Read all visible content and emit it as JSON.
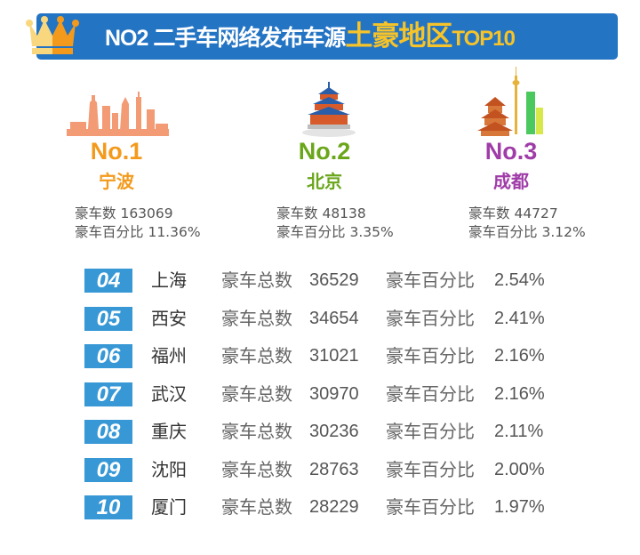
{
  "header": {
    "title_prefix": "NO2 二手车网络发布车源",
    "title_highlight": "土豪地区",
    "title_suffix": "TOP10",
    "bg_color": "#2474c4",
    "highlight_color": "#f6c329",
    "icon": "crown-icon"
  },
  "top3": [
    {
      "rank": "No.1",
      "city": "宁波",
      "count_label": "豪车数",
      "count": "163069",
      "pct_label": "豪车百分比",
      "pct": "11.36%",
      "color": "#f39a1c",
      "icon": "ningbo-skyline-icon"
    },
    {
      "rank": "No.2",
      "city": "北京",
      "count_label": "豪车数",
      "count": "48138",
      "pct_label": "豪车百分比",
      "pct": "3.35%",
      "color": "#6aa61a",
      "icon": "temple-of-heaven-icon"
    },
    {
      "rank": "No.3",
      "city": "成都",
      "count_label": "豪车数",
      "count": "44727",
      "pct_label": "豪车百分比",
      "pct": "3.12%",
      "color": "#a03ca8",
      "icon": "chengdu-skyline-icon"
    }
  ],
  "list_labels": {
    "count_label": "豪车总数",
    "pct_label": "豪车百分比"
  },
  "list": [
    {
      "rank": "04",
      "city": "上海",
      "count": "36529",
      "pct": "2.54%"
    },
    {
      "rank": "05",
      "city": "西安",
      "count": "34654",
      "pct": "2.41%"
    },
    {
      "rank": "06",
      "city": "福州",
      "count": "31021",
      "pct": "2.16%"
    },
    {
      "rank": "07",
      "city": "武汉",
      "count": "30970",
      "pct": "2.16%"
    },
    {
      "rank": "08",
      "city": "重庆",
      "count": "30236",
      "pct": "2.11%"
    },
    {
      "rank": "09",
      "city": "沈阳",
      "count": "28763",
      "pct": "2.00%"
    },
    {
      "rank": "10",
      "city": "厦门",
      "count": "28229",
      "pct": "1.97%"
    }
  ]
}
